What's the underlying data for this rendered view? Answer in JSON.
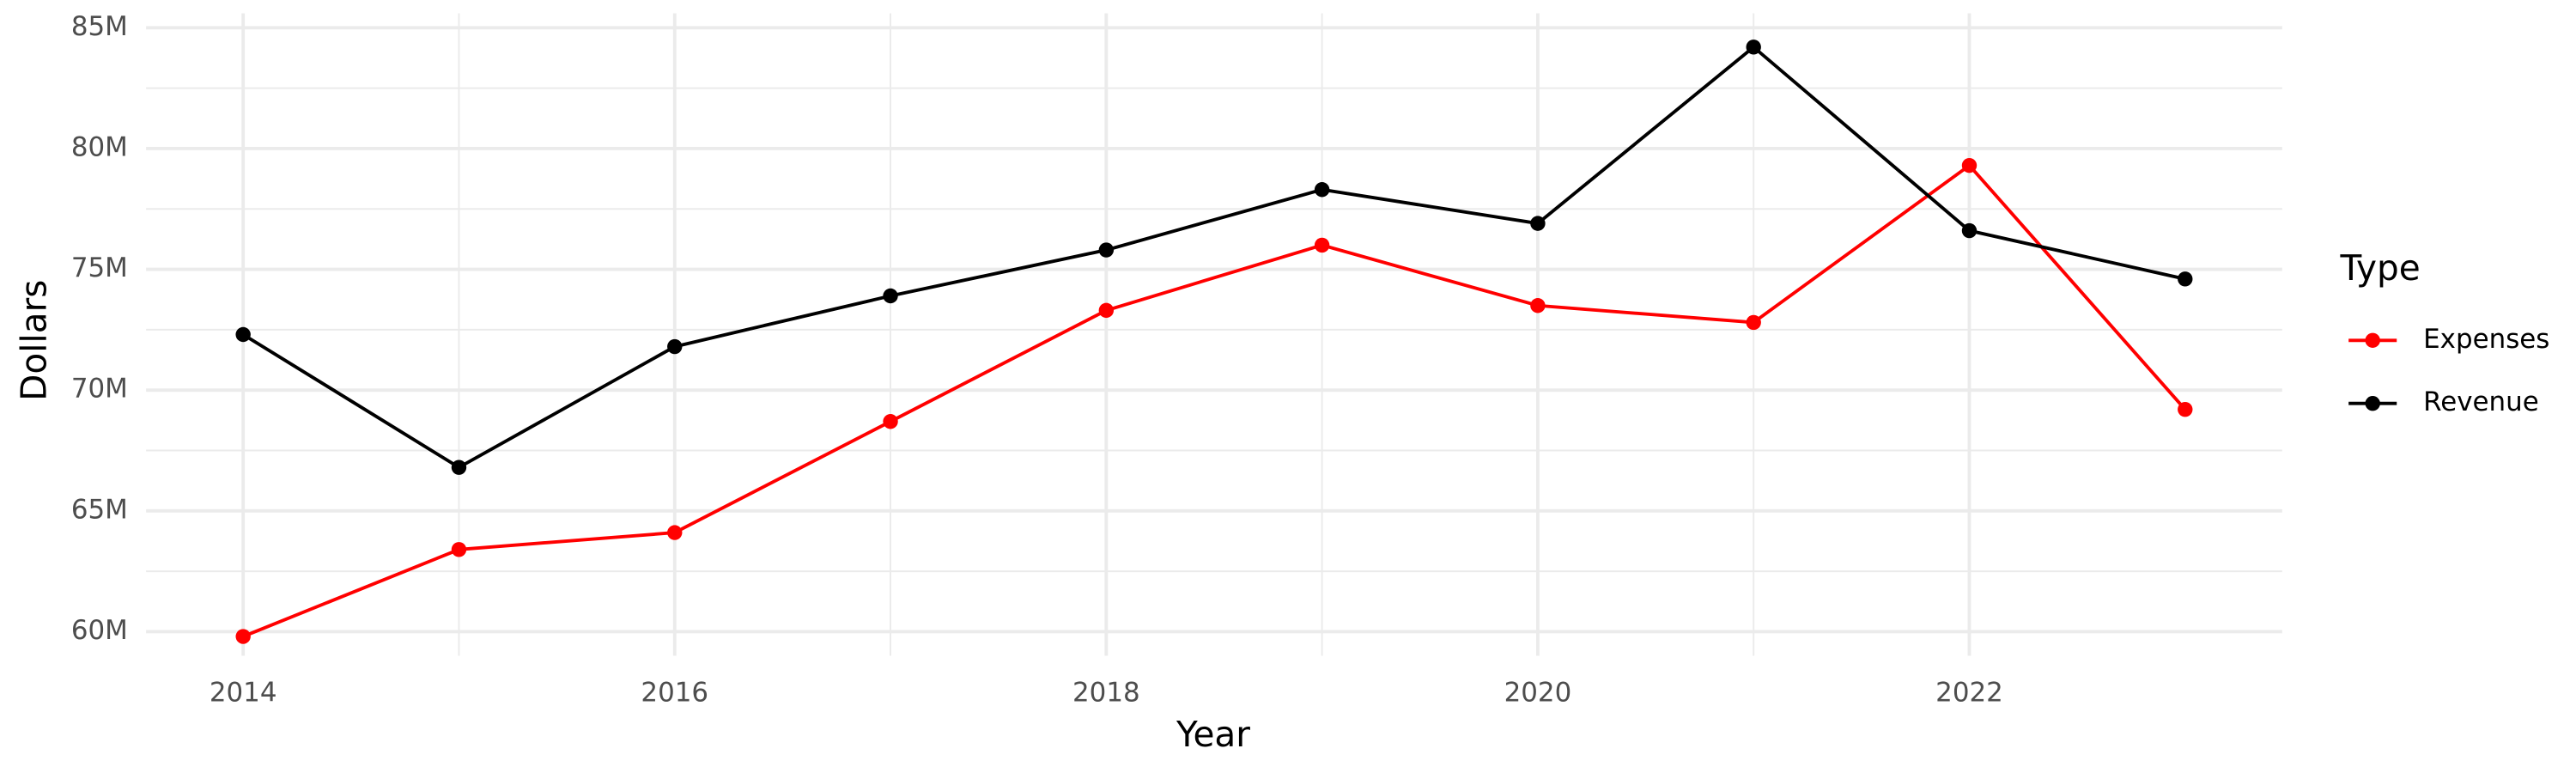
{
  "chart_data": {
    "type": "line",
    "x_label": "Year",
    "y_label": "Dollars",
    "x": [
      2014,
      2015,
      2016,
      2017,
      2018,
      2019,
      2020,
      2021,
      2022,
      2023
    ],
    "series": [
      {
        "name": "Expenses",
        "color": "#ff0000",
        "values": [
          59800000,
          63400000,
          64100000,
          68700000,
          73300000,
          76000000,
          73500000,
          72800000,
          79300000,
          69200000
        ]
      },
      {
        "name": "Revenue",
        "color": "#000000",
        "values": [
          72300000,
          66800000,
          71800000,
          73900000,
          75800000,
          78300000,
          76900000,
          84200000,
          76600000,
          74600000
        ]
      }
    ],
    "xlim": [
      2013.55,
      2023.45
    ],
    "xticks": [
      2014,
      2016,
      2018,
      2020,
      2022
    ],
    "ylim": [
      59000000,
      85600000
    ],
    "yticks": [
      {
        "value": 60000000,
        "label": "60M"
      },
      {
        "value": 65000000,
        "label": "65M"
      },
      {
        "value": 70000000,
        "label": "70M"
      },
      {
        "value": 75000000,
        "label": "75M"
      },
      {
        "value": 80000000,
        "label": "80M"
      },
      {
        "value": 85000000,
        "label": "85M"
      }
    ],
    "legend_title": "Type",
    "legend_position": "right",
    "grid": true
  }
}
